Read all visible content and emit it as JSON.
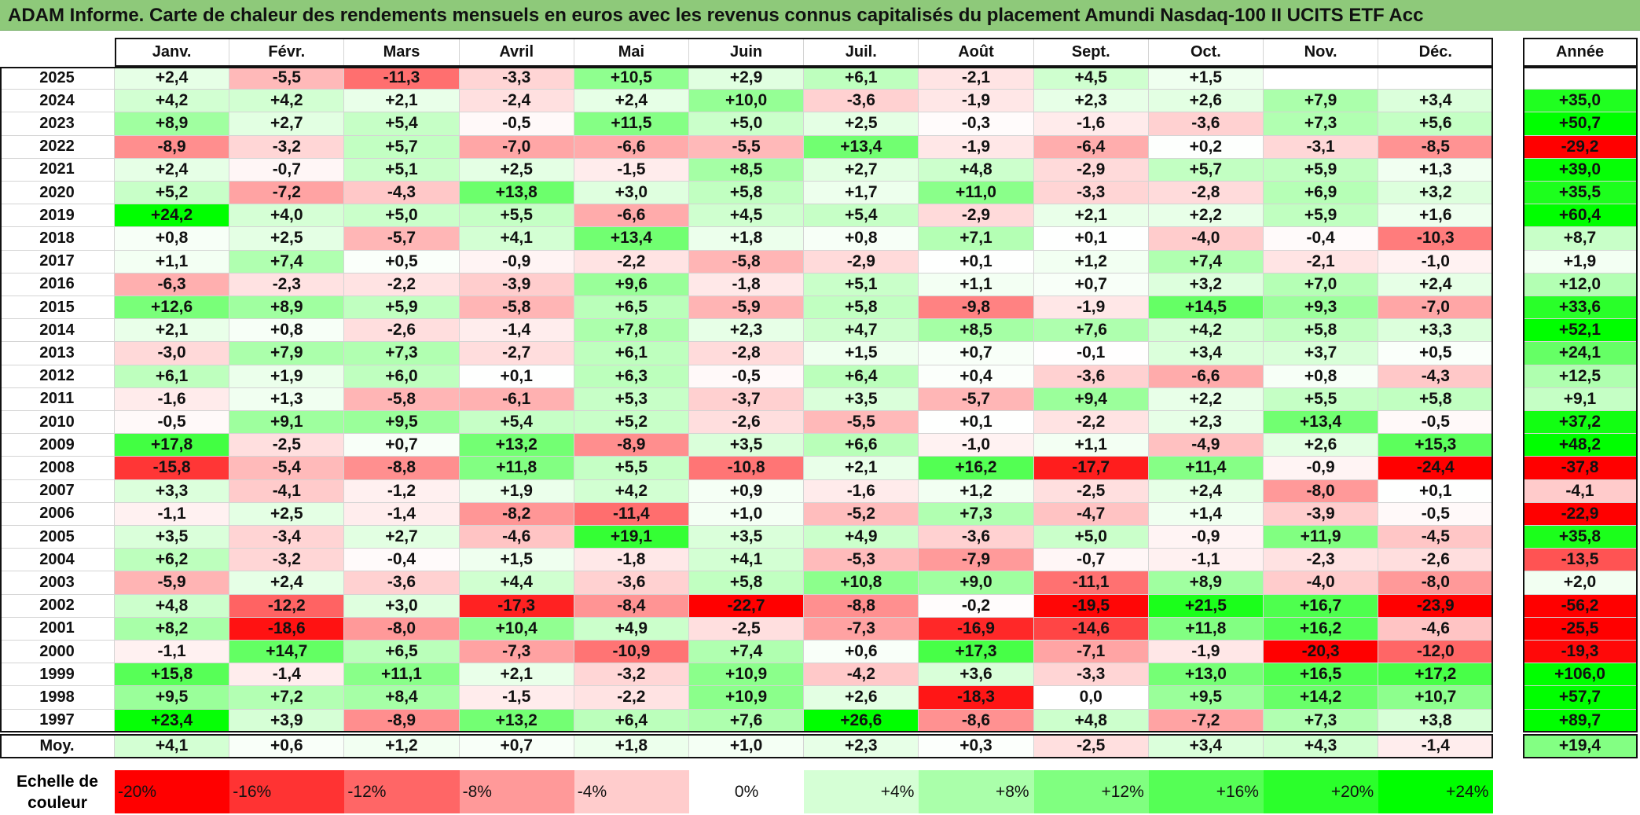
{
  "title": "ADAM Informe. Carte de chaleur des rendements mensuels en euros avec les revenus connus capitalisés du placement Amundi Nasdaq-100 II UCITS ETF Acc",
  "chart_data": {
    "type": "heatmap",
    "title": "ADAM Informe. Carte de chaleur des rendements mensuels en euros avec les revenus connus capitalisés du placement Amundi Nasdaq-100 II UCITS ETF Acc",
    "months": [
      "Janv.",
      "Févr.",
      "Mars",
      "Avril",
      "Mai",
      "Juin",
      "Juil.",
      "Août",
      "Sept.",
      "Oct.",
      "Nov.",
      "Déc."
    ],
    "year_header": "Année",
    "rows": [
      {
        "year": "2025",
        "values": [
          "+2,4",
          "-5,5",
          "-11,3",
          "-3,3",
          "+10,5",
          "+2,9",
          "+6,1",
          "-2,1",
          "+4,5",
          "+1,5",
          "",
          ""
        ],
        "annual": ""
      },
      {
        "year": "2024",
        "values": [
          "+4,2",
          "+4,2",
          "+2,1",
          "-2,4",
          "+2,4",
          "+10,0",
          "-3,6",
          "-1,9",
          "+2,3",
          "+2,6",
          "+7,9",
          "+3,4"
        ],
        "annual": "+35,0"
      },
      {
        "year": "2023",
        "values": [
          "+8,9",
          "+2,7",
          "+5,4",
          "-0,5",
          "+11,5",
          "+5,0",
          "+2,5",
          "-0,3",
          "-1,6",
          "-3,6",
          "+7,3",
          "+5,6"
        ],
        "annual": "+50,7"
      },
      {
        "year": "2022",
        "values": [
          "-8,9",
          "-3,2",
          "+5,7",
          "-7,0",
          "-6,6",
          "-5,5",
          "+13,4",
          "-1,9",
          "-6,4",
          "+0,2",
          "-3,1",
          "-8,5"
        ],
        "annual": "-29,2"
      },
      {
        "year": "2021",
        "values": [
          "+2,4",
          "-0,7",
          "+5,1",
          "+2,5",
          "-1,5",
          "+8,5",
          "+2,7",
          "+4,8",
          "-2,9",
          "+5,7",
          "+5,9",
          "+1,3"
        ],
        "annual": "+39,0"
      },
      {
        "year": "2020",
        "values": [
          "+5,2",
          "-7,2",
          "-4,3",
          "+13,8",
          "+3,0",
          "+5,8",
          "+1,7",
          "+11,0",
          "-3,3",
          "-2,8",
          "+6,9",
          "+3,2"
        ],
        "annual": "+35,5"
      },
      {
        "year": "2019",
        "values": [
          "+24,2",
          "+4,0",
          "+5,0",
          "+5,5",
          "-6,6",
          "+4,5",
          "+5,4",
          "-2,9",
          "+2,1",
          "+2,2",
          "+5,9",
          "+1,6"
        ],
        "annual": "+60,4"
      },
      {
        "year": "2018",
        "values": [
          "+0,8",
          "+2,5",
          "-5,7",
          "+4,1",
          "+13,4",
          "+1,8",
          "+0,8",
          "+7,1",
          "+0,1",
          "-4,0",
          "-0,4",
          "-10,3"
        ],
        "annual": "+8,7"
      },
      {
        "year": "2017",
        "values": [
          "+1,1",
          "+7,4",
          "+0,5",
          "-0,9",
          "-2,2",
          "-5,8",
          "-2,9",
          "+0,1",
          "+1,2",
          "+7,4",
          "-2,1",
          "-1,0"
        ],
        "annual": "+1,9"
      },
      {
        "year": "2016",
        "values": [
          "-6,3",
          "-2,3",
          "-2,2",
          "-3,9",
          "+9,6",
          "-1,8",
          "+5,1",
          "+1,1",
          "+0,7",
          "+3,2",
          "+7,0",
          "+2,4"
        ],
        "annual": "+12,0"
      },
      {
        "year": "2015",
        "values": [
          "+12,6",
          "+8,9",
          "+5,9",
          "-5,8",
          "+6,5",
          "-5,9",
          "+5,8",
          "-9,8",
          "-1,9",
          "+14,5",
          "+9,3",
          "-7,0"
        ],
        "annual": "+33,6"
      },
      {
        "year": "2014",
        "values": [
          "+2,1",
          "+0,8",
          "-2,6",
          "-1,4",
          "+7,8",
          "+2,3",
          "+4,7",
          "+8,5",
          "+7,6",
          "+4,2",
          "+5,8",
          "+3,3"
        ],
        "annual": "+52,1"
      },
      {
        "year": "2013",
        "values": [
          "-3,0",
          "+7,9",
          "+7,3",
          "-2,7",
          "+6,1",
          "-2,8",
          "+1,5",
          "+0,7",
          "-0,1",
          "+3,4",
          "+3,7",
          "+0,5"
        ],
        "annual": "+24,1"
      },
      {
        "year": "2012",
        "values": [
          "+6,1",
          "+1,9",
          "+6,0",
          "+0,1",
          "+6,3",
          "-0,5",
          "+6,4",
          "+0,4",
          "-3,6",
          "-6,6",
          "+0,8",
          "-4,3"
        ],
        "annual": "+12,5"
      },
      {
        "year": "2011",
        "values": [
          "-1,6",
          "+1,3",
          "-5,8",
          "-6,1",
          "+5,3",
          "-3,7",
          "+3,5",
          "-5,7",
          "+9,4",
          "+2,2",
          "+5,5",
          "+5,8"
        ],
        "annual": "+9,1"
      },
      {
        "year": "2010",
        "values": [
          "-0,5",
          "+9,1",
          "+9,5",
          "+5,4",
          "+5,2",
          "-2,6",
          "-5,5",
          "+0,1",
          "-2,2",
          "+2,3",
          "+13,4",
          "-0,5"
        ],
        "annual": "+37,2"
      },
      {
        "year": "2009",
        "values": [
          "+17,8",
          "-2,5",
          "+0,7",
          "+13,2",
          "-8,9",
          "+3,5",
          "+6,6",
          "-1,0",
          "+1,1",
          "-4,9",
          "+2,6",
          "+15,3"
        ],
        "annual": "+48,2"
      },
      {
        "year": "2008",
        "values": [
          "-15,8",
          "-5,4",
          "-8,8",
          "+11,8",
          "+5,5",
          "-10,8",
          "+2,1",
          "+16,2",
          "-17,7",
          "+11,4",
          "-0,9",
          "-24,4"
        ],
        "annual": "-37,8"
      },
      {
        "year": "2007",
        "values": [
          "+3,3",
          "-4,1",
          "-1,2",
          "+1,9",
          "+4,2",
          "+0,9",
          "-1,6",
          "+1,2",
          "-2,5",
          "+2,4",
          "-8,0",
          "+0,1"
        ],
        "annual": "-4,1"
      },
      {
        "year": "2006",
        "values": [
          "-1,1",
          "+2,5",
          "-1,4",
          "-8,2",
          "-11,4",
          "+1,0",
          "-5,2",
          "+7,3",
          "-4,7",
          "+1,4",
          "-3,9",
          "-0,5"
        ],
        "annual": "-22,9"
      },
      {
        "year": "2005",
        "values": [
          "+3,5",
          "-3,4",
          "+2,7",
          "-4,6",
          "+19,1",
          "+3,5",
          "+4,9",
          "-3,6",
          "+5,0",
          "-0,9",
          "+11,9",
          "-4,5"
        ],
        "annual": "+35,8"
      },
      {
        "year": "2004",
        "values": [
          "+6,2",
          "-3,2",
          "-0,4",
          "+1,5",
          "-1,8",
          "+4,1",
          "-5,3",
          "-7,9",
          "-0,7",
          "-1,1",
          "-2,3",
          "-2,6"
        ],
        "annual": "-13,5"
      },
      {
        "year": "2003",
        "values": [
          "-5,9",
          "+2,4",
          "-3,6",
          "+4,4",
          "-3,6",
          "+5,8",
          "+10,8",
          "+9,0",
          "-11,1",
          "+8,9",
          "-4,0",
          "-8,0"
        ],
        "annual": "+2,0"
      },
      {
        "year": "2002",
        "values": [
          "+4,8",
          "-12,2",
          "+3,0",
          "-17,3",
          "-8,4",
          "-22,7",
          "-8,8",
          "-0,2",
          "-19,5",
          "+21,5",
          "+16,7",
          "-23,9"
        ],
        "annual": "-56,2"
      },
      {
        "year": "2001",
        "values": [
          "+8,2",
          "-18,6",
          "-8,0",
          "+10,4",
          "+4,9",
          "-2,5",
          "-7,3",
          "-16,9",
          "-14,6",
          "+11,8",
          "+16,2",
          "-4,6"
        ],
        "annual": "-25,5"
      },
      {
        "year": "2000",
        "values": [
          "-1,1",
          "+14,7",
          "+6,5",
          "-7,3",
          "-10,9",
          "+7,4",
          "+0,6",
          "+17,3",
          "-7,1",
          "-1,9",
          "-20,3",
          "-12,0"
        ],
        "annual": "-19,3"
      },
      {
        "year": "1999",
        "values": [
          "+15,8",
          "-1,4",
          "+11,1",
          "+2,1",
          "-3,2",
          "+10,9",
          "-4,2",
          "+3,6",
          "-3,3",
          "+13,0",
          "+16,5",
          "+17,2"
        ],
        "annual": "+106,0"
      },
      {
        "year": "1998",
        "values": [
          "+9,5",
          "+7,2",
          "+8,4",
          "-1,5",
          "-2,2",
          "+10,9",
          "+2,6",
          "-18,3",
          "0,0",
          "+9,5",
          "+14,2",
          "+10,7"
        ],
        "annual": "+57,7"
      },
      {
        "year": "1997",
        "values": [
          "+23,4",
          "+3,9",
          "-8,9",
          "+13,2",
          "+6,4",
          "+7,6",
          "+26,6",
          "-8,6",
          "+4,8",
          "-7,2",
          "+7,3",
          "+3,8"
        ],
        "annual": "+89,7"
      }
    ],
    "average": {
      "label": "Moy.",
      "values": [
        "+4,1",
        "+0,6",
        "+1,2",
        "+0,7",
        "+1,8",
        "+1,0",
        "+2,3",
        "+0,3",
        "-2,5",
        "+3,4",
        "+4,3",
        "-1,4"
      ],
      "annual": "+19,4"
    },
    "color_scale": {
      "label_line1": "Echelle de",
      "label_line2": "couleur",
      "stops": [
        "-20%",
        "-16%",
        "-12%",
        "-8%",
        "-4%",
        "0%",
        "+4%",
        "+8%",
        "+12%",
        "+16%",
        "+20%",
        "+24%"
      ],
      "min": -20,
      "max": 24
    },
    "colors": {
      "negative": "#ff0000",
      "zero": "#ffffff",
      "positive": "#00ff00",
      "title_bg": "#8ec97a"
    }
  }
}
